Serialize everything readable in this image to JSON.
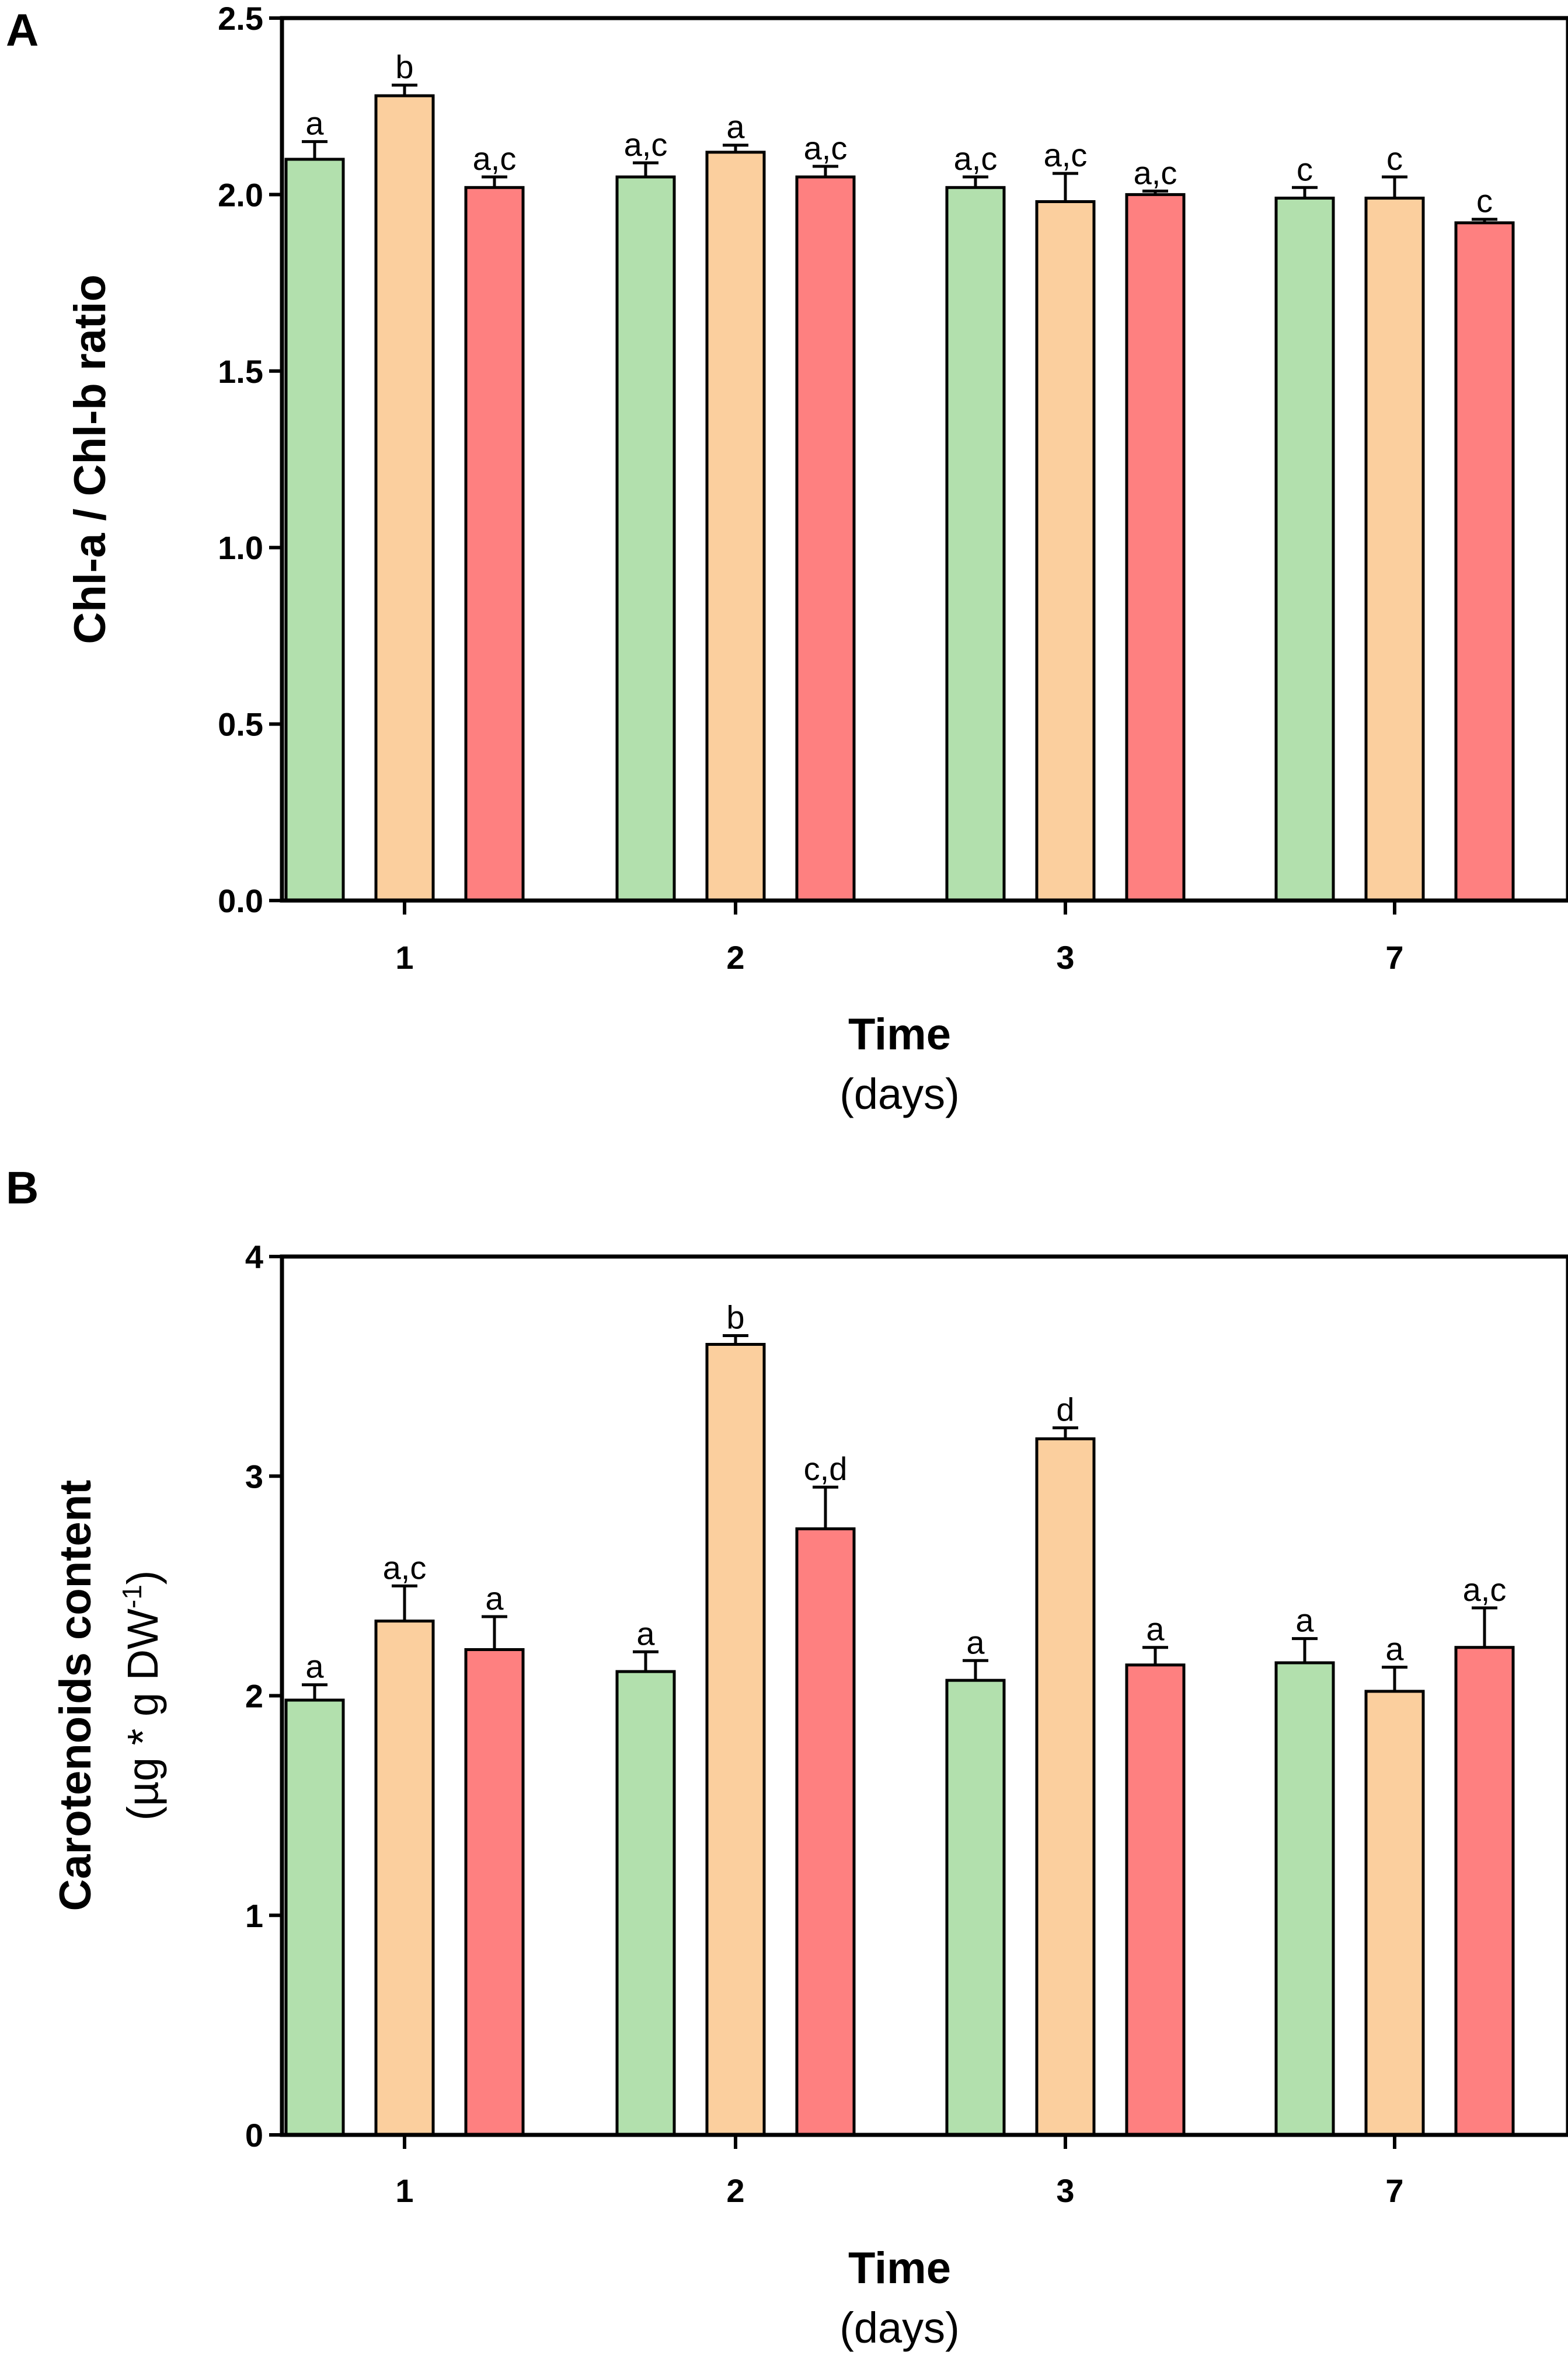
{
  "chart_data": [
    {
      "panel": "A",
      "type": "bar",
      "categories": [
        "1",
        "2",
        "3",
        "7"
      ],
      "series": [
        {
          "name": "green",
          "color": "#b2e0ad",
          "values": [
            2.1,
            2.05,
            2.02,
            1.99
          ],
          "errors": [
            0.05,
            0.04,
            0.03,
            0.03
          ],
          "labels": [
            "a",
            "a,c",
            "a,c",
            "c"
          ]
        },
        {
          "name": "orange",
          "color": "#fbcf9e",
          "values": [
            2.28,
            2.12,
            1.98,
            1.99
          ],
          "errors": [
            0.03,
            0.02,
            0.08,
            0.06
          ],
          "labels": [
            "b",
            "a",
            "a,c",
            "c"
          ]
        },
        {
          "name": "red",
          "color": "#fe8080",
          "values": [
            2.02,
            2.05,
            2.0,
            1.92
          ],
          "errors": [
            0.03,
            0.03,
            0.01,
            0.01
          ],
          "labels": [
            "a,c",
            "a,c",
            "a,c",
            "c"
          ]
        }
      ],
      "ylim": [
        0,
        2.5
      ],
      "yticks": [
        "0.0",
        "0.5",
        "1.0",
        "1.5",
        "2.0",
        "2.5"
      ],
      "ylabel": "Chl-a / Chl-b ratio",
      "ylabel_sub": "",
      "xlabel": "Time",
      "xlabel_sub": "(days)"
    },
    {
      "panel": "B",
      "type": "bar",
      "categories": [
        "1",
        "2",
        "3",
        "7"
      ],
      "series": [
        {
          "name": "green",
          "color": "#b2e0ad",
          "values": [
            1.98,
            2.11,
            2.07,
            2.15
          ],
          "errors": [
            0.07,
            0.09,
            0.09,
            0.11
          ],
          "labels": [
            "a",
            "a",
            "a",
            "a"
          ]
        },
        {
          "name": "orange",
          "color": "#fbcf9e",
          "values": [
            2.34,
            3.6,
            3.17,
            2.02
          ],
          "errors": [
            0.16,
            0.04,
            0.05,
            0.11
          ],
          "labels": [
            "a,c",
            "b",
            "d",
            "a"
          ]
        },
        {
          "name": "red",
          "color": "#fe8080",
          "values": [
            2.21,
            2.76,
            2.14,
            2.22
          ],
          "errors": [
            0.15,
            0.19,
            0.08,
            0.18
          ],
          "labels": [
            "a",
            "c,d",
            "a",
            "a,c"
          ]
        }
      ],
      "ylim": [
        0,
        4
      ],
      "yticks": [
        "0",
        "1",
        "2",
        "3",
        "4"
      ],
      "ylabel": "Carotenoids content",
      "ylabel_sub_prefix": "(µg * g DW",
      "ylabel_sub_sup": "-1",
      "ylabel_sub_suffix": ")",
      "xlabel": "Time",
      "xlabel_sub": "(days)"
    }
  ]
}
